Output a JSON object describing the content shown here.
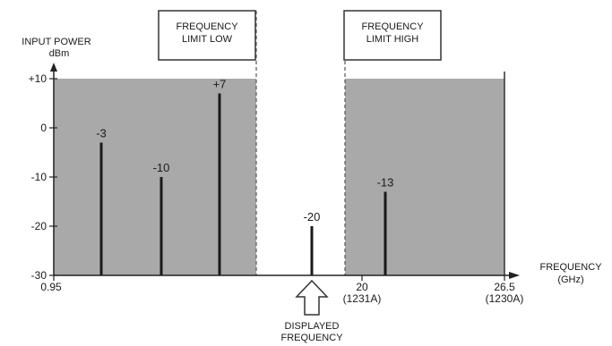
{
  "chart_data": {
    "type": "bar",
    "title": "",
    "ylabel": "INPUT POWER",
    "yunit": "dBm",
    "xlabel": "FREQUENCY",
    "xunit": "(GHz)",
    "ylim": [
      -30,
      10
    ],
    "yticks": [
      {
        "value": 10,
        "label": "+10"
      },
      {
        "value": 0,
        "label": "0"
      },
      {
        "value": -10,
        "label": "-10"
      },
      {
        "value": -20,
        "label": "-20"
      },
      {
        "value": -30,
        "label": "-30"
      }
    ],
    "xticks": [
      {
        "label": "0.95",
        "sub": ""
      },
      {
        "label": "20",
        "sub": "(1231A)"
      },
      {
        "label": "26.5",
        "sub": "(1230A)"
      }
    ],
    "signals": [
      {
        "label": "-3",
        "value": -3
      },
      {
        "label": "-10",
        "value": -10
      },
      {
        "label": "+7",
        "value": 7
      },
      {
        "label": "-20",
        "value": -20
      },
      {
        "label": "-13",
        "value": -13
      }
    ],
    "shaded_regions": [
      "below frequency limit low",
      "above frequency limit high"
    ],
    "shade_color": "#a9a9a9",
    "annotations": {
      "limit_low": [
        "FREQUENCY",
        "LIMIT LOW"
      ],
      "limit_high": [
        "FREQUENCY",
        "LIMIT HIGH"
      ],
      "displayed": [
        "DISPLAYED",
        "FREQUENCY"
      ]
    }
  }
}
